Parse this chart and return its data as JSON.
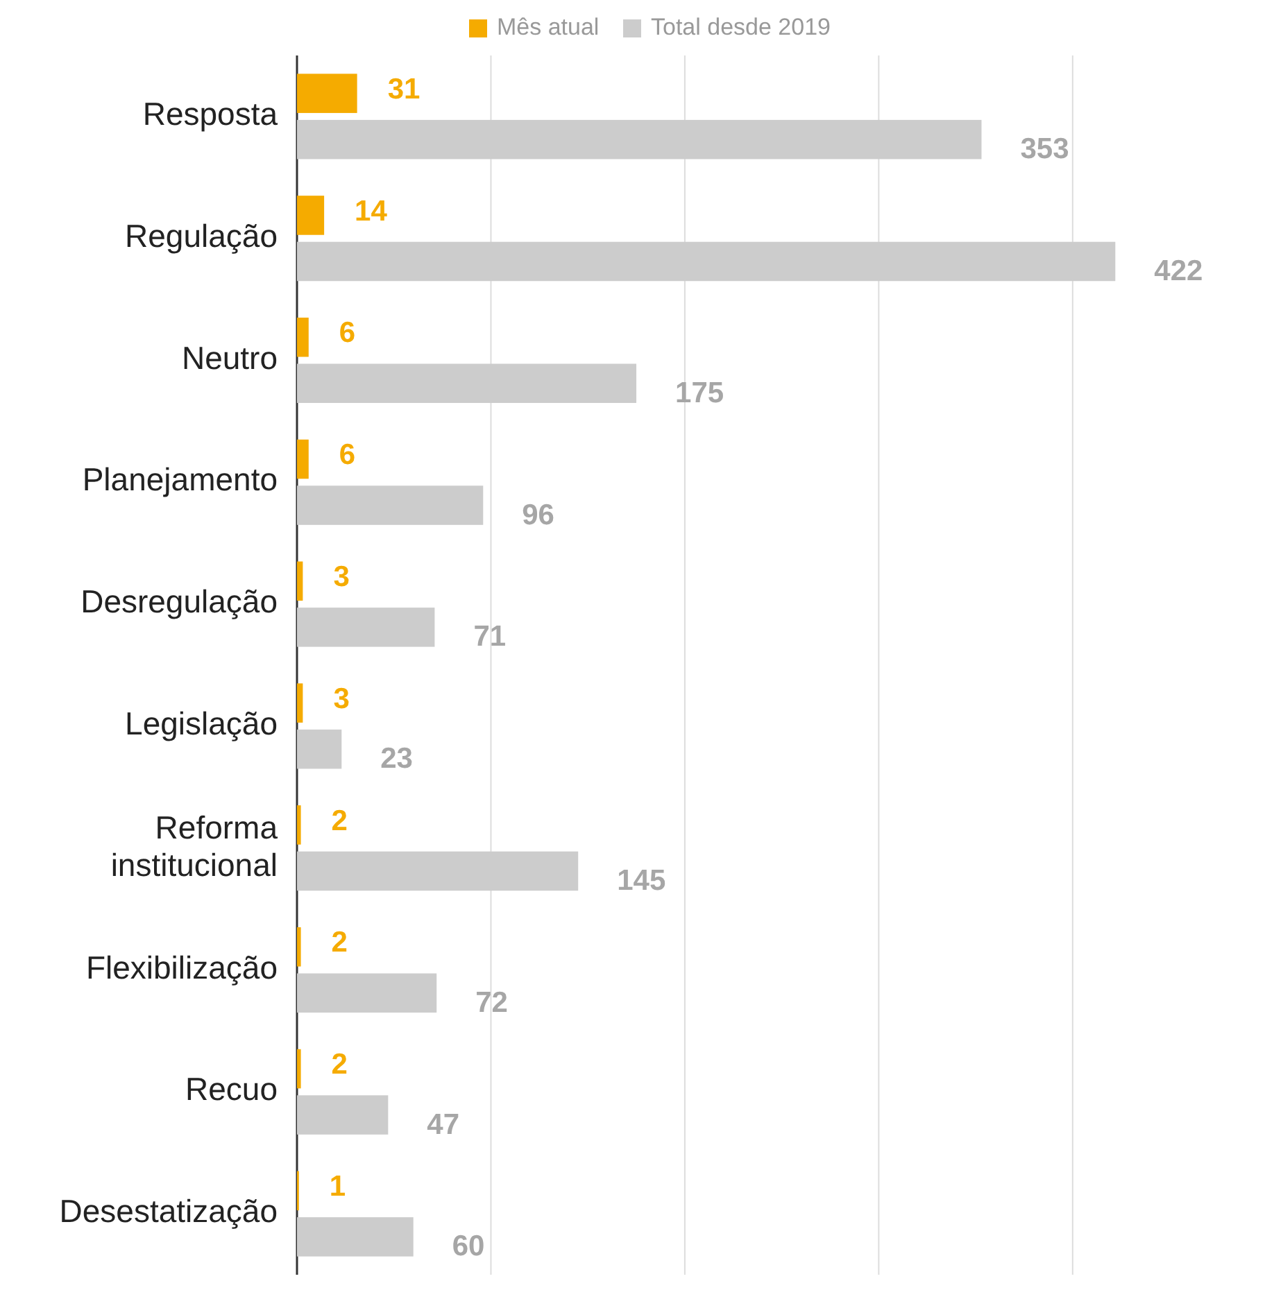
{
  "chart_data": {
    "type": "bar",
    "orientation": "horizontal",
    "categories": [
      "Resposta",
      "Regulação",
      "Neutro",
      "Planejamento",
      "Desregulação",
      "Legislação",
      "Reforma institucional",
      "Flexibilização",
      "Recuo",
      "Desestatização"
    ],
    "series": [
      {
        "name": "Mês atual",
        "color": "#f5ab00",
        "values": [
          31,
          14,
          6,
          6,
          3,
          3,
          2,
          2,
          2,
          1
        ]
      },
      {
        "name": "Total desde 2019",
        "color": "#cccccc",
        "values": [
          353,
          422,
          175,
          96,
          71,
          23,
          145,
          72,
          47,
          60
        ]
      }
    ],
    "xticks": [
      {
        "value": 0,
        "label": null
      },
      {
        "value": 100,
        "label": null
      },
      {
        "value": 200,
        "label": null
      },
      {
        "value": 300,
        "label": null
      },
      {
        "value": 400,
        "label": null
      }
    ],
    "tick_labels": "y",
    "grid": "x",
    "legend": "top",
    "data_labels": true
  }
}
